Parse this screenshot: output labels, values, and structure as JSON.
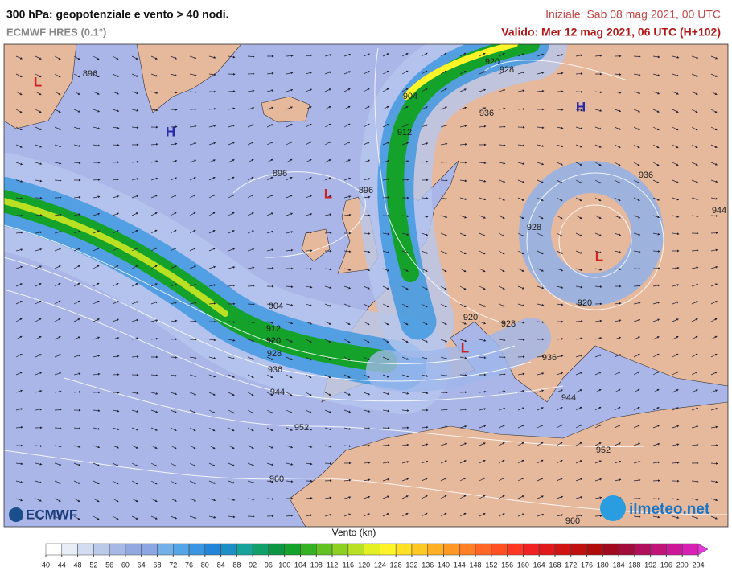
{
  "header": {
    "title": "300 hPa: geopotenziale e vento > 40 nodi.",
    "subtitle": "ECMWF HRES (0.1°)",
    "init": "Iniziale: Sab 08 mag 2021, 00 UTC",
    "valid": "Valido: Mer 12 mag 2021, 06 UTC (H+102)"
  },
  "map": {
    "contour_labels": [
      896,
      896,
      896,
      904,
      912,
      920,
      928,
      936,
      936,
      928,
      920,
      920,
      928,
      936,
      944,
      904,
      912,
      920,
      928,
      936,
      944,
      952,
      960,
      952,
      960,
      944
    ],
    "centers": [
      "L",
      "H",
      "L",
      "H",
      "L",
      "L"
    ]
  },
  "legend": {
    "title": "Vento (kn)",
    "ticks": [
      40,
      44,
      48,
      52,
      56,
      60,
      64,
      68,
      72,
      76,
      80,
      84,
      88,
      92,
      96,
      100,
      104,
      108,
      112,
      116,
      120,
      124,
      128,
      132,
      136,
      140,
      144,
      148,
      152,
      156,
      160,
      164,
      168,
      172,
      176,
      180,
      184,
      188,
      192,
      196,
      200,
      204
    ],
    "colors": [
      "#ffffff",
      "#e8edf6",
      "#d3dcf0",
      "#bccaea",
      "#a7b8e4",
      "#94a8e0",
      "#8ba6e2",
      "#74b0e8",
      "#55a6e6",
      "#3a96e0",
      "#2385d8",
      "#1e8fc4",
      "#17a39a",
      "#11a06a",
      "#0c9644",
      "#14a22a",
      "#34b224",
      "#62c222",
      "#8ed022",
      "#bae024",
      "#e2f024",
      "#fff428",
      "#ffe024",
      "#ffc824",
      "#ffb024",
      "#ff9824",
      "#ff8024",
      "#ff6824",
      "#ff5024",
      "#ff3824",
      "#f02222",
      "#e01a1a",
      "#d01414",
      "#c01010",
      "#b00c0c",
      "#a00a1e",
      "#a00c3c",
      "#b0105a",
      "#c01478",
      "#cc1896",
      "#d820b4",
      "#e636dc"
    ]
  },
  "logos": {
    "left": "ECMWF",
    "right": "ilmeteo.net"
  }
}
